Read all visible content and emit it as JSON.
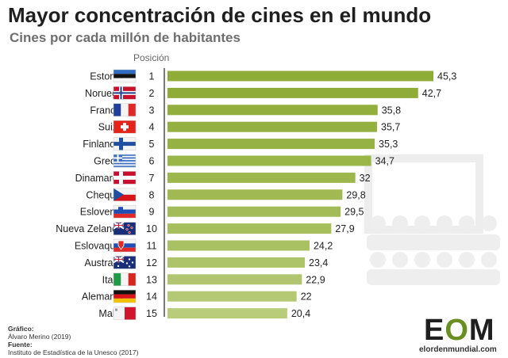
{
  "title": "Mayor concentración de cines en el mundo",
  "subtitle": "Cines por cada millón de habitantes",
  "position_header": "Posición",
  "chart_data": {
    "type": "bar",
    "orientation": "horizontal",
    "title": "Mayor concentración de cines en el mundo",
    "subtitle": "Cines por cada millón de habitantes",
    "categories": [
      "Estonia",
      "Noruega",
      "Francia",
      "Suiza",
      "Finlandia",
      "Grecia",
      "Dinamarca",
      "Chequia",
      "Eslovenia",
      "Nueva Zelanda",
      "Eslovaquia",
      "Australia",
      "Italia",
      "Alemania",
      "Malta"
    ],
    "positions": [
      "1",
      "2",
      "3",
      "4",
      "5",
      "6",
      "7",
      "8",
      "9",
      "10",
      "11",
      "12",
      "13",
      "14",
      "15"
    ],
    "values": [
      45.3,
      42.7,
      35.8,
      35.7,
      35.3,
      34.7,
      32,
      29.8,
      29.5,
      27.9,
      24.2,
      23.4,
      22.9,
      22,
      20.4
    ],
    "value_labels": [
      "45,3",
      "42,7",
      "35,8",
      "35,7",
      "35,3",
      "34,7",
      "32",
      "29,8",
      "29,5",
      "27,9",
      "24,2",
      "23,4",
      "22,9",
      "22",
      "20,4"
    ],
    "flags": [
      "estonia-flag",
      "norway-flag",
      "france-flag",
      "switzerland-flag",
      "finland-flag",
      "greece-flag",
      "denmark-flag",
      "czechia-flag",
      "slovenia-flag",
      "new-zealand-flag",
      "slovakia-flag",
      "australia-flag",
      "italy-flag",
      "germany-flag",
      "malta-flag"
    ],
    "xlim": [
      0,
      45.3
    ],
    "grid": false,
    "colors": [
      "#8fac38",
      "#8fac38",
      "#92ae3c",
      "#94b040",
      "#97b244",
      "#9ab548",
      "#9db74d",
      "#a0b952",
      "#a3bc57",
      "#a7be5d",
      "#aac163",
      "#aec468",
      "#b1c66e",
      "#b5c974",
      "#b9cc7a"
    ]
  },
  "credits": {
    "graphic_label": "Gráfico:",
    "graphic_value": "Álvaro Merino (2019)",
    "source_label": "Fuente:",
    "source_value": "Instituto de Estadística de la Unesco (2017)"
  },
  "logo": {
    "mark_left": "E",
    "mark_mid": "O",
    "mark_right": "M",
    "url": "elordenmundial.com"
  }
}
